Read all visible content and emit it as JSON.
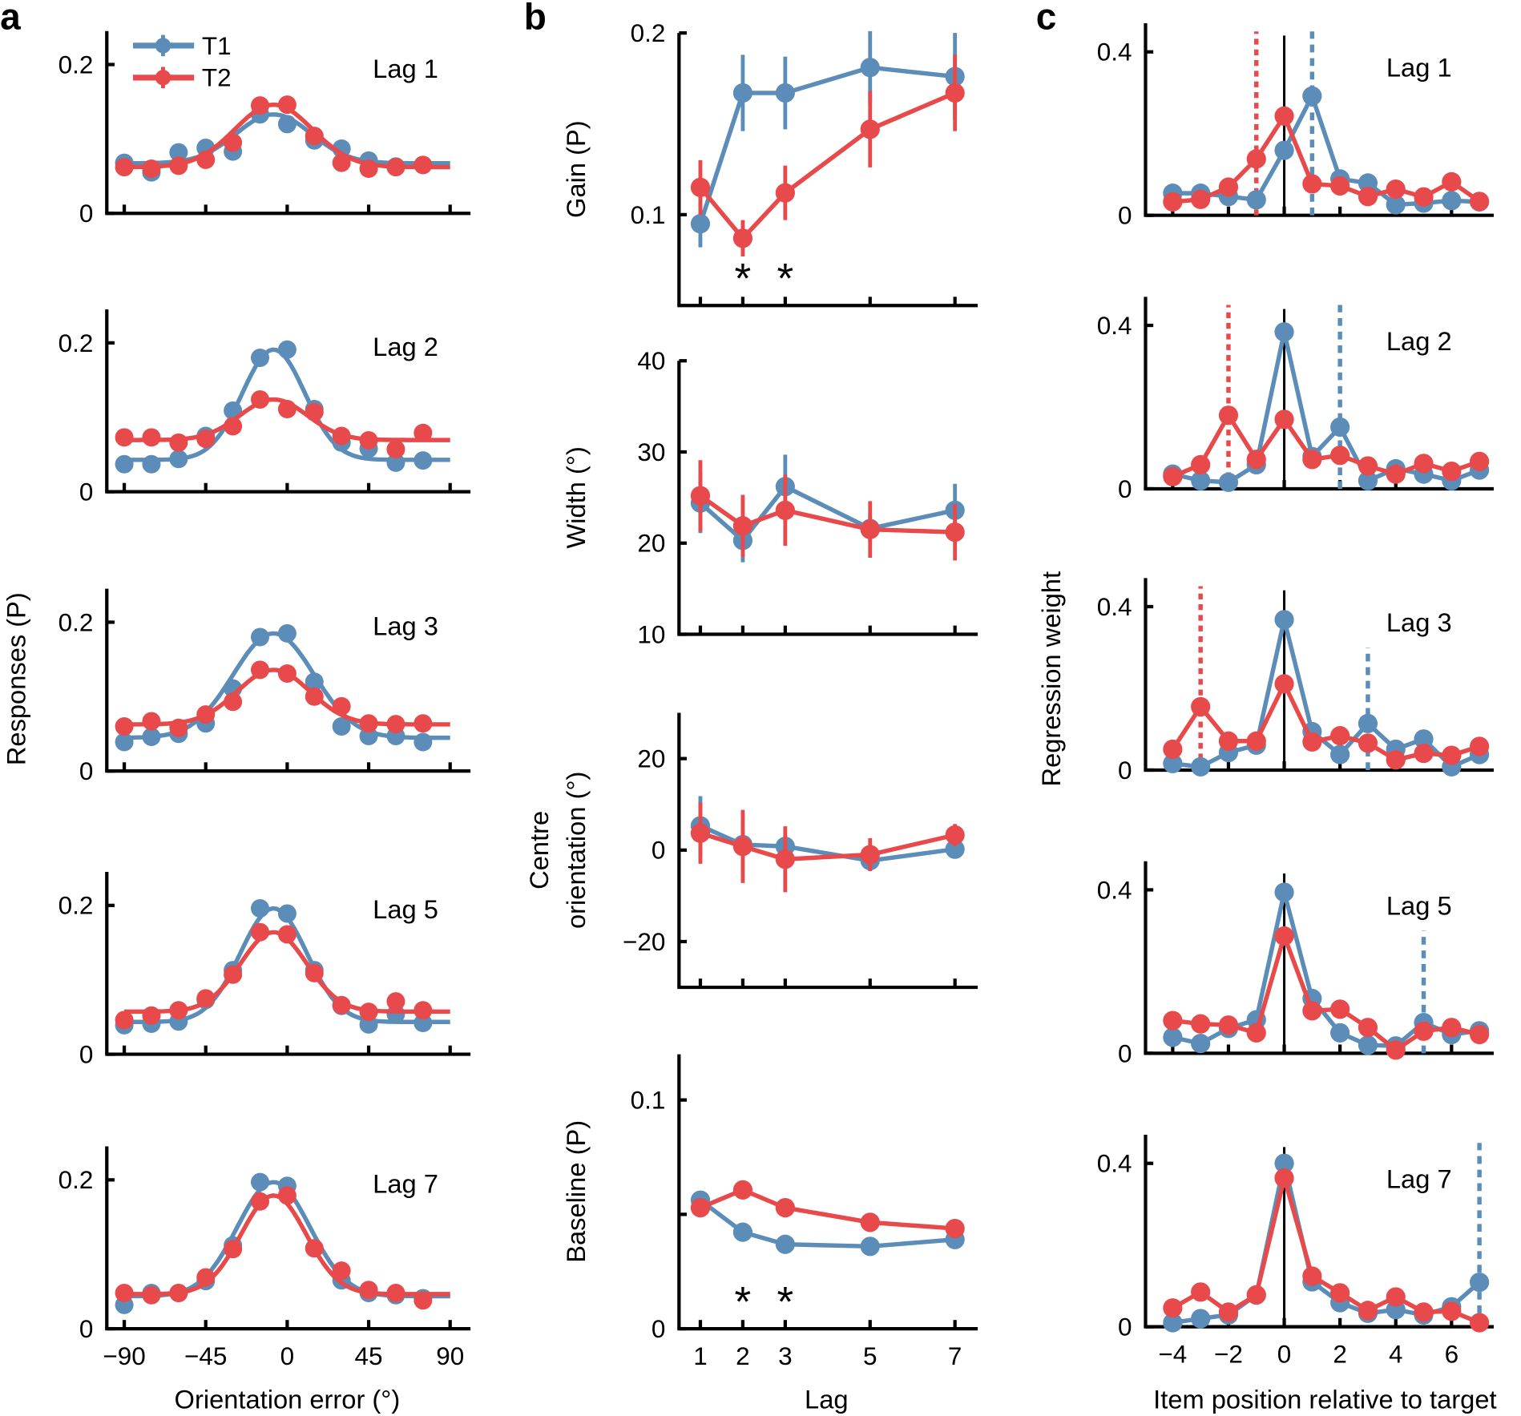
{
  "colors": {
    "T1": "#5b8db8",
    "T2": "#e8494a",
    "axis": "#000000"
  },
  "legend": {
    "placement": "top-left of panel a, Lag 1",
    "items": [
      "T1",
      "T2"
    ]
  },
  "chart_data": [
    {
      "panel_label": "a",
      "type": "line",
      "xlabel": "Orientation error (°)",
      "ylabel": "Responses (P)",
      "x": [
        -90,
        -75,
        -60,
        -45,
        -30,
        -15,
        0,
        15,
        30,
        45,
        60,
        75
      ],
      "xticks": [
        -90,
        -45,
        0,
        45,
        90
      ],
      "xtick_labels": [
        "−90",
        "−45",
        "0",
        "45",
        "90"
      ],
      "xlim": [
        -90,
        90
      ],
      "ylim": [
        0,
        0.245
      ],
      "yticks": [
        0,
        0.2
      ],
      "ytick_labels": [
        "0",
        "0.2"
      ],
      "grid": false,
      "subplots": [
        {
          "title": "Lag 1",
          "series": [
            {
              "name": "T1",
              "values": [
                0.068,
                0.055,
                0.082,
                0.088,
                0.083,
                0.133,
                0.12,
                0.098,
                0.087,
                0.071,
                0.063,
                0.065
              ]
            },
            {
              "name": "T2",
              "values": [
                0.062,
                0.06,
                0.064,
                0.072,
                0.095,
                0.145,
                0.146,
                0.104,
                0.068,
                0.06,
                0.062,
                0.065
              ]
            }
          ]
        },
        {
          "title": "Lag 2",
          "series": [
            {
              "name": "T1",
              "values": [
                0.037,
                0.037,
                0.044,
                0.075,
                0.109,
                0.18,
                0.191,
                0.111,
                0.066,
                0.058,
                0.039,
                0.042
              ]
            },
            {
              "name": "T2",
              "values": [
                0.073,
                0.073,
                0.066,
                0.071,
                0.088,
                0.124,
                0.111,
                0.107,
                0.075,
                0.069,
                0.057,
                0.079
              ]
            }
          ]
        },
        {
          "title": "Lag 3",
          "series": [
            {
              "name": "T1",
              "values": [
                0.039,
                0.046,
                0.05,
                0.064,
                0.111,
                0.18,
                0.185,
                0.12,
                0.06,
                0.047,
                0.047,
                0.039
              ]
            },
            {
              "name": "T2",
              "values": [
                0.06,
                0.067,
                0.058,
                0.076,
                0.093,
                0.136,
                0.131,
                0.1,
                0.087,
                0.064,
                0.063,
                0.064
              ]
            }
          ]
        },
        {
          "title": "Lag 5",
          "series": [
            {
              "name": "T1",
              "values": [
                0.039,
                0.041,
                0.044,
                0.073,
                0.113,
                0.196,
                0.189,
                0.113,
                0.065,
                0.04,
                0.054,
                0.042
              ]
            },
            {
              "name": "T2",
              "values": [
                0.046,
                0.052,
                0.059,
                0.075,
                0.107,
                0.164,
                0.161,
                0.109,
                0.066,
                0.057,
                0.071,
                0.059
              ]
            }
          ]
        },
        {
          "title": "Lag 7",
          "series": [
            {
              "name": "T1",
              "values": [
                0.032,
                0.048,
                0.048,
                0.064,
                0.112,
                0.197,
                0.192,
                0.108,
                0.065,
                0.048,
                0.045,
                0.041
              ]
            },
            {
              "name": "T2",
              "values": [
                0.048,
                0.045,
                0.048,
                0.069,
                0.107,
                0.171,
                0.179,
                0.108,
                0.078,
                0.052,
                0.048,
                0.038
              ]
            }
          ]
        }
      ]
    },
    {
      "panel_label": "b",
      "type": "line",
      "xlabel": "Lag",
      "x": [
        1,
        2,
        3,
        5,
        7
      ],
      "xtick_labels": [
        "1",
        "2",
        "3",
        "5",
        "7"
      ],
      "grid": false,
      "significance_marker": "*",
      "subplots": [
        {
          "ylabel": "Gain (P)",
          "ylim": [
            0.05,
            0.2
          ],
          "yticks": [
            0.1,
            0.2
          ],
          "ytick_labels": [
            "0.1",
            "0.2"
          ],
          "significant_lags": [
            2,
            3
          ],
          "series": [
            {
              "name": "T1",
              "values": [
                0.095,
                0.167,
                0.167,
                0.181,
                0.176
              ],
              "errors": [
                0.013,
                0.021,
                0.02,
                0.02,
                0.024
              ]
            },
            {
              "name": "T2",
              "values": [
                0.115,
                0.087,
                0.112,
                0.147,
                0.167
              ],
              "errors": [
                0.015,
                0.01,
                0.015,
                0.021,
                0.021
              ]
            }
          ]
        },
        {
          "ylabel": "Width (°)",
          "ylim": [
            10,
            40
          ],
          "yticks": [
            10,
            20,
            30,
            40
          ],
          "ytick_labels": [
            "10",
            "20",
            "30",
            "40"
          ],
          "significant_lags": [],
          "series": [
            {
              "name": "T1",
              "values": [
                24.4,
                20.3,
                26.2,
                21.6,
                23.6
              ],
              "errors": [
                3.3,
                2.4,
                3.5,
                1.5,
                2.9
              ]
            },
            {
              "name": "T2",
              "values": [
                25.2,
                21.9,
                23.6,
                21.5,
                21.2
              ],
              "errors": [
                3.9,
                3.4,
                3.9,
                3.1,
                3.1
              ]
            }
          ]
        },
        {
          "ylabel": [
            "Centre",
            "orientation (°)"
          ],
          "ylim": [
            -30,
            30
          ],
          "yticks": [
            -20,
            0,
            20
          ],
          "ytick_labels": [
            "−20",
            "0",
            "20"
          ],
          "significant_lags": [],
          "series": [
            {
              "name": "T1",
              "values": [
                5.3,
                1.2,
                0.8,
                -2.3,
                0.2
              ],
              "errors": [
                6.5,
                3,
                2.5,
                2,
                1.5
              ]
            },
            {
              "name": "T2",
              "values": [
                3.7,
                0.8,
                -2.0,
                -1.0,
                3.3
              ],
              "errors": [
                6.7,
                8.0,
                7.2,
                3.6,
                2.4
              ]
            }
          ]
        },
        {
          "ylabel": "Baseline (P)",
          "ylim": [
            0,
            0.12
          ],
          "yticks": [
            0,
            0.05,
            0.1
          ],
          "ytick_labels": [
            "0",
            "",
            "0.1"
          ],
          "significant_lags": [
            2,
            3
          ],
          "series": [
            {
              "name": "T1",
              "values": [
                0.0562,
                0.0422,
                0.0369,
                0.036,
                0.039
              ],
              "errors": [
                0.002,
                0.0015,
                0.0015,
                0.0015,
                0.0015
              ]
            },
            {
              "name": "T2",
              "values": [
                0.0529,
                0.0607,
                0.0529,
                0.0465,
                0.0438
              ],
              "errors": [
                0.003,
                0.002,
                0.003,
                0.003,
                0.002
              ]
            }
          ]
        }
      ]
    },
    {
      "panel_label": "c",
      "type": "line",
      "xlabel": "Item position relative to target",
      "ylabel": "Regression weight",
      "x": [
        -4,
        -3,
        -2,
        -1,
        0,
        1,
        2,
        3,
        4,
        5,
        6,
        7
      ],
      "xticks": [
        -4,
        -2,
        0,
        2,
        4,
        6
      ],
      "xtick_labels": [
        "−4",
        "−2",
        "0",
        "2",
        "4",
        "6"
      ],
      "ylim": [
        0,
        0.47
      ],
      "yticks": [
        0,
        0.4
      ],
      "ytick_labels": [
        "0",
        "0.4"
      ],
      "grid": false,
      "subplots": [
        {
          "title": "Lag 1",
          "T2_position_line": -1,
          "T1_position_line": 1,
          "series": [
            {
              "name": "T1",
              "values": [
                0.054,
                0.054,
                0.046,
                0.038,
                0.159,
                0.292,
                0.089,
                0.079,
                0.026,
                0.03,
                0.036,
                0.033
              ]
            },
            {
              "name": "T2",
              "values": [
                0.033,
                0.039,
                0.069,
                0.138,
                0.243,
                0.077,
                0.072,
                0.046,
                0.064,
                0.045,
                0.082,
                0.034
              ]
            }
          ]
        },
        {
          "title": "Lag 2",
          "T2_position_line": -2,
          "T1_position_line": 2,
          "series": [
            {
              "name": "T1",
              "values": [
                0.036,
                0.02,
                0.016,
                0.059,
                0.384,
                0.079,
                0.151,
                0.02,
                0.049,
                0.036,
                0.02,
                0.046
              ]
            },
            {
              "name": "T2",
              "values": [
                0.03,
                0.059,
                0.18,
                0.072,
                0.17,
                0.072,
                0.082,
                0.056,
                0.036,
                0.062,
                0.043,
                0.067
              ]
            }
          ]
        },
        {
          "title": "Lag 3",
          "T2_position_line": -3,
          "T1_position_line": 3,
          "series": [
            {
              "name": "T1",
              "values": [
                0.016,
                0.008,
                0.043,
                0.061,
                0.368,
                0.094,
                0.038,
                0.114,
                0.051,
                0.076,
                0.008,
                0.038
              ]
            },
            {
              "name": "T2",
              "values": [
                0.051,
                0.155,
                0.071,
                0.071,
                0.211,
                0.069,
                0.084,
                0.066,
                0.025,
                0.041,
                0.036,
                0.058
              ]
            }
          ]
        },
        {
          "title": "Lag 5",
          "T2_position_line": null,
          "T1_position_line": 5,
          "series": [
            {
              "name": "T1",
              "values": [
                0.039,
                0.024,
                0.061,
                0.082,
                0.394,
                0.134,
                0.05,
                0.02,
                0.018,
                0.075,
                0.046,
                0.055
              ]
            },
            {
              "name": "T2",
              "values": [
                0.08,
                0.072,
                0.069,
                0.05,
                0.287,
                0.104,
                0.108,
                0.063,
                0.008,
                0.054,
                0.063,
                0.046
              ]
            }
          ]
        },
        {
          "title": "Lag 7",
          "T2_position_line": null,
          "T1_position_line": 7,
          "series": [
            {
              "name": "T1",
              "values": [
                0.01,
                0.02,
                0.029,
                0.078,
                0.4,
                0.11,
                0.059,
                0.033,
                0.042,
                0.029,
                0.049,
                0.109
              ]
            },
            {
              "name": "T2",
              "values": [
                0.046,
                0.085,
                0.036,
                0.078,
                0.364,
                0.124,
                0.083,
                0.04,
                0.073,
                0.036,
                0.038,
                0.01
              ]
            }
          ]
        }
      ]
    }
  ]
}
